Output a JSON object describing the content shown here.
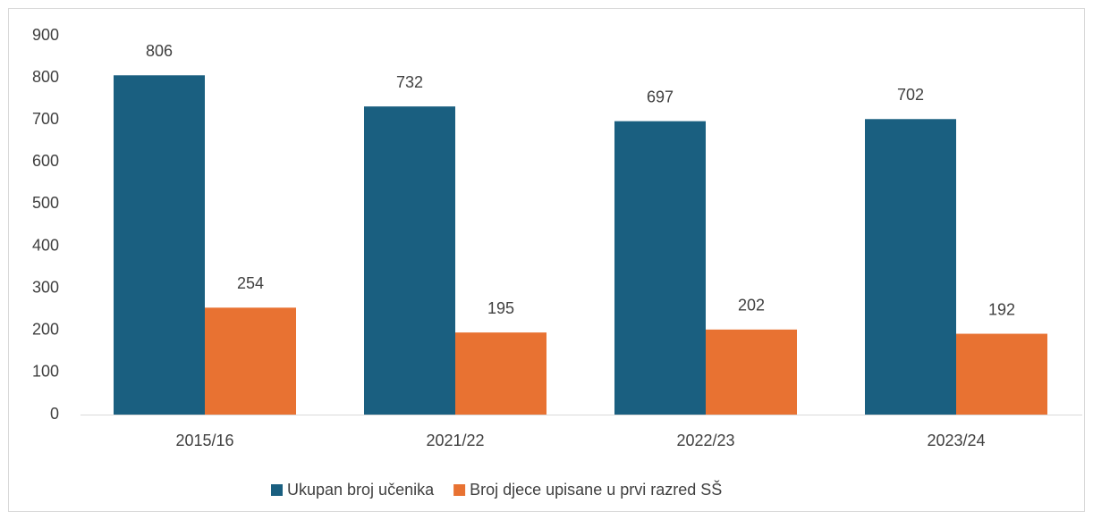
{
  "chart_data": {
    "type": "bar",
    "categories": [
      "2015/16",
      "2021/22",
      "2022/23",
      "2023/24"
    ],
    "series": [
      {
        "name": "Ukupan broj učenika",
        "color": "#1a5f80",
        "values": [
          806,
          732,
          697,
          702
        ]
      },
      {
        "name": "Broj djece upisane u prvi razred SŠ",
        "color": "#e87232",
        "values": [
          254,
          195,
          202,
          192
        ]
      }
    ],
    "ylim": [
      0,
      900
    ],
    "yticks": [
      0,
      100,
      200,
      300,
      400,
      500,
      600,
      700,
      800,
      900
    ],
    "grid": false,
    "legend": "bottom"
  }
}
